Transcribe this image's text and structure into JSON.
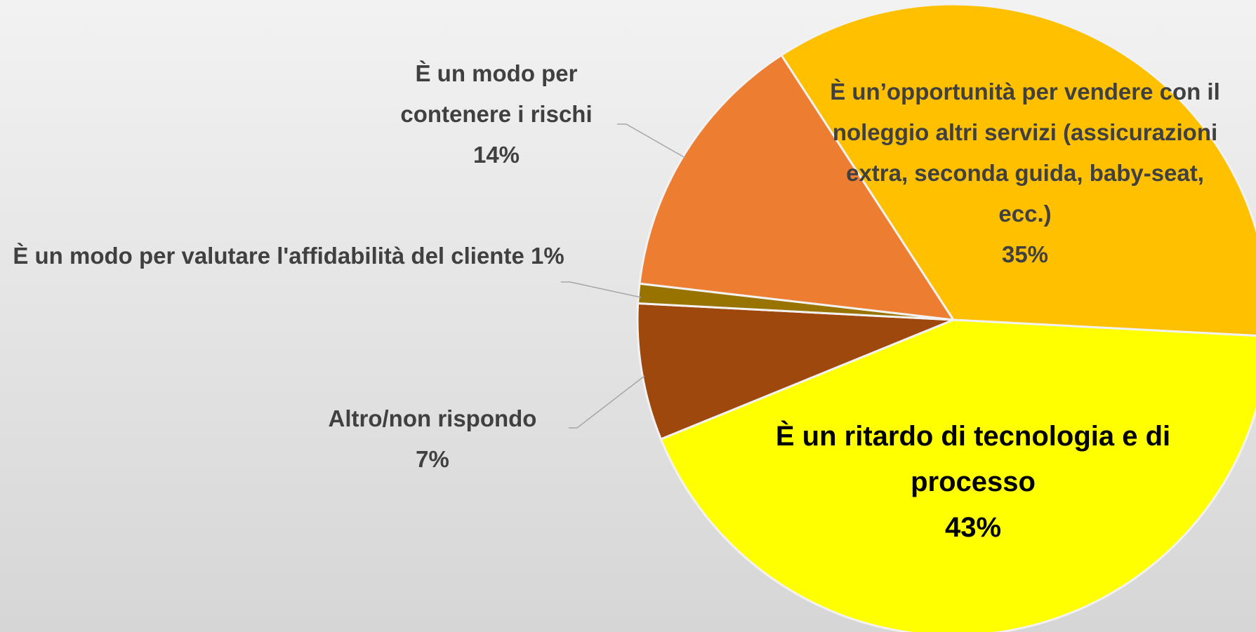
{
  "chart_data": {
    "type": "pie",
    "categories": [
      "È un’opportunità per vendere con il noleggio altri servizi (assicurazioni extra, seconda guida, baby-seat, ecc.)",
      "È un ritardo di tecnologia e di processo",
      "Altro/non rispondo",
      "È un modo per valutare l'affidabilità del cliente",
      "È un modo per contenere i rischi"
    ],
    "values": [
      35,
      43,
      7,
      1,
      14
    ],
    "value_labels": [
      "35%",
      "43%",
      "7%",
      "1%",
      "14%"
    ],
    "colors": [
      "#FFC000",
      "#FFFF00",
      "#9E480E",
      "#997300",
      "#ED7D31"
    ]
  }
}
